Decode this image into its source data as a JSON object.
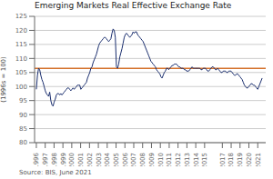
{
  "chart_data": {
    "type": "line",
    "title": "Emerging Markets Real Effective Exchange Rate",
    "ylabel": "(1996s = 100)",
    "source": "Source: BIS, June 2021",
    "grid": "y",
    "color": "#1a2e6e",
    "reference_line": {
      "value": 106.5,
      "color": "#d4712a"
    },
    "xlim": [
      1995.8,
      2021.9
    ],
    "xticks": [
      {
        "value": 1996,
        "label": "1996"
      },
      {
        "value": 1997,
        "label": "1997"
      },
      {
        "value": 1998,
        "label": "1998"
      },
      {
        "value": 1999,
        "label": "1999"
      },
      {
        "value": 2000,
        "label": "2000"
      },
      {
        "value": 2001,
        "label": "2001"
      },
      {
        "value": 2002,
        "label": "2002"
      },
      {
        "value": 2003,
        "label": "2003"
      },
      {
        "value": 2004,
        "label": "2004"
      },
      {
        "value": 2005,
        "label": "2005"
      },
      {
        "value": 2006,
        "label": "2006"
      },
      {
        "value": 2007,
        "label": "2007"
      },
      {
        "value": 2008,
        "label": "2008"
      },
      {
        "value": 2009,
        "label": "2009"
      },
      {
        "value": 2010,
        "label": "2010"
      },
      {
        "value": 2011,
        "label": "2011"
      },
      {
        "value": 2012,
        "label": "2012"
      },
      {
        "value": 2013,
        "label": "2013"
      },
      {
        "value": 2014,
        "label": "2014"
      },
      {
        "value": 2015,
        "label": "2015"
      },
      {
        "value": 2017,
        "label": "2017"
      },
      {
        "value": 2018,
        "label": "2018"
      },
      {
        "value": 2019,
        "label": "2019"
      },
      {
        "value": 2020,
        "label": "2020"
      },
      {
        "value": 2021,
        "label": "2021"
      }
    ],
    "ylim": [
      80,
      125
    ],
    "yticks": [
      80,
      85,
      90,
      95,
      100,
      105,
      110,
      115,
      120,
      125
    ],
    "x": [
      1996.0,
      1996.1256,
      1996.2512,
      1996.3768,
      1996.5025,
      1996.6281,
      1996.7537,
      1996.8793,
      1997.0049,
      1997.1305,
      1997.2562,
      1997.3818,
      1997.5074,
      1997.633,
      1997.7586,
      1997.8842,
      1998.0099,
      1998.1355,
      1998.2611,
      1998.3867,
      1998.5123,
      1998.6379,
      1998.7635,
      1998.8892,
      1999.0148,
      1999.1404,
      1999.266,
      1999.3916,
      1999.5172,
      1999.6429,
      1999.7685,
      1999.8941,
      2000.0197,
      2000.1453,
      2000.2709,
      2000.3966,
      2000.5222,
      2000.6478,
      2000.7734,
      2000.899,
      2001.0246,
      2001.1502,
      2001.2759,
      2001.4015,
      2001.5271,
      2001.6527,
      2001.7783,
      2001.9039,
      2002.0296,
      2002.1552,
      2002.2808,
      2002.4064,
      2002.532,
      2002.6576,
      2002.7833,
      2002.9089,
      2003.0345,
      2003.1601,
      2003.2857,
      2003.4113,
      2003.5369,
      2003.6626,
      2003.7882,
      2003.9138,
      2004.0394,
      2004.165,
      2004.2906,
      2004.4163,
      2004.5419,
      2004.6675,
      2004.7931,
      2004.9187,
      2005.0443,
      2005.17,
      2005.2956,
      2005.4212,
      2005.5468,
      2005.6724,
      2005.798,
      2005.9236,
      2006.0493,
      2006.1749,
      2006.3005,
      2006.4261,
      2006.5517,
      2006.6773,
      2006.803,
      2006.9286,
      2007.0542,
      2007.1798,
      2007.3054,
      2007.431,
      2007.5567,
      2007.6823,
      2007.8079,
      2007.9335,
      2008.0591,
      2008.1847,
      2008.3103,
      2008.436,
      2008.5616,
      2008.6872,
      2008.8128,
      2008.9384,
      2009.064,
      2009.1897,
      2009.3153,
      2009.4409,
      2009.5665,
      2009.6921,
      2009.8177,
      2009.9433,
      2010.069,
      2010.1946,
      2010.3202,
      2010.4458,
      2010.5714,
      2010.697,
      2010.8227,
      2010.9483,
      2011.0739,
      2011.1995,
      2011.3251,
      2011.4507,
      2011.5764,
      2011.702,
      2011.8276,
      2011.9532,
      2012.0788,
      2012.2044,
      2012.33,
      2012.4557,
      2012.5813,
      2012.7069,
      2012.8325,
      2012.9581,
      2013.0837,
      2013.2094,
      2013.335,
      2013.4606,
      2013.5862,
      2013.7118,
      2013.8374,
      2013.9631,
      2014.0887,
      2014.2143,
      2014.3399,
      2014.4655,
      2014.5911,
      2014.7167,
      2014.8424,
      2014.968,
      2015.0936,
      2015.2192,
      2015.3448,
      2015.4704,
      2015.5961,
      2015.7217,
      2015.8473,
      2015.9729,
      2016.0985,
      2016.2241,
      2016.3498,
      2016.4754,
      2016.601,
      2016.7266,
      2016.8522,
      2016.9778,
      2017.1034,
      2017.2291,
      2017.3547,
      2017.4803,
      2017.6059,
      2017.7315,
      2017.8571,
      2017.9828,
      2018.1084,
      2018.234,
      2018.3596,
      2018.4852,
      2018.6108,
      2018.7365,
      2018.8621,
      2018.9877,
      2019.1133,
      2019.2389,
      2019.3645,
      2019.4901,
      2019.6158,
      2019.7414,
      2019.867,
      2019.9926,
      2020.1182,
      2020.2438,
      2020.3695,
      2020.4951,
      2020.6207,
      2020.7463,
      2020.8719,
      2020.9975,
      2021.1232,
      2021.2488,
      2021.3744,
      2021.5
    ],
    "values": [
      99.0,
      104.0,
      106.5,
      106.0,
      104.0,
      102.5,
      101.5,
      100.0,
      98.5,
      97.5,
      97.0,
      96.5,
      98.0,
      95.0,
      93.5,
      93.0,
      94.5,
      95.5,
      97.0,
      97.5,
      97.5,
      97.0,
      97.5,
      97.0,
      97.5,
      98.0,
      98.5,
      99.0,
      99.5,
      99.5,
      99.0,
      98.5,
      99.0,
      99.5,
      99.0,
      99.5,
      100.0,
      100.5,
      100.5,
      100.5,
      99.0,
      99.5,
      100.0,
      100.5,
      101.0,
      101.5,
      103.0,
      104.0,
      105.0,
      106.5,
      107.0,
      108.5,
      109.5,
      110.5,
      111.5,
      113.0,
      114.5,
      115.5,
      116.0,
      116.5,
      117.0,
      117.5,
      117.5,
      117.0,
      116.5,
      116.0,
      116.5,
      117.0,
      119.0,
      120.5,
      120.0,
      117.5,
      107.0,
      106.5,
      108.0,
      110.5,
      112.0,
      113.5,
      115.5,
      117.5,
      118.5,
      119.0,
      118.5,
      118.0,
      117.5,
      118.0,
      118.5,
      119.5,
      119.0,
      119.5,
      119.5,
      118.5,
      118.0,
      117.5,
      117.0,
      116.5,
      116.0,
      115.0,
      114.0,
      113.0,
      112.0,
      111.0,
      110.0,
      109.0,
      108.5,
      108.0,
      107.5,
      107.0,
      106.0,
      105.5,
      105.0,
      104.5,
      103.5,
      103.0,
      104.0,
      105.0,
      105.5,
      106.5,
      106.5,
      106.0,
      106.5,
      107.0,
      107.5,
      107.5,
      108.0,
      108.0,
      108.0,
      107.5,
      107.0,
      107.0,
      106.5,
      106.5,
      106.5,
      106.0,
      106.0,
      105.5,
      105.5,
      105.5,
      106.0,
      106.5,
      107.0,
      106.5,
      106.5,
      106.5,
      106.5,
      106.5,
      106.5,
      106.5,
      106.0,
      106.0,
      106.5,
      106.5,
      106.5,
      106.0,
      105.5,
      105.5,
      106.0,
      106.5,
      107.0,
      107.0,
      106.5,
      106.0,
      106.0,
      106.5,
      106.0,
      105.5,
      105.0,
      105.0,
      105.5,
      105.5,
      105.5,
      105.0,
      105.0,
      105.5,
      105.5,
      105.5,
      105.0,
      104.5,
      104.0,
      104.0,
      104.5,
      104.5,
      104.0,
      103.5,
      103.0,
      102.5,
      101.5,
      100.5,
      100.0,
      99.5,
      99.5,
      100.0,
      100.5,
      101.0,
      101.0,
      100.5,
      100.5,
      100.0,
      99.5,
      99.0,
      100.0,
      101.0,
      102.0,
      103.0
    ]
  }
}
